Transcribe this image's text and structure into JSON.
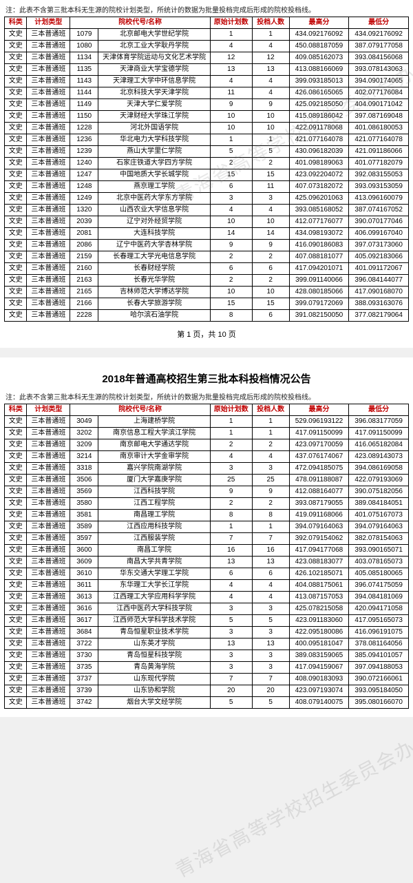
{
  "note": "注：此表不含第三批本科无生源的院校计划类型，所统计的数据为批量投档完成后形成的院校投档线。",
  "title2": "2018年普通高校招生第三批本科投档情况公告",
  "pager": "第 1 页，共 10 页",
  "watermark": "青海省高等学校招生委员会办公室",
  "headers": [
    "科类",
    "计划类型",
    "",
    "院校代号/名称",
    "原始计划数",
    "投档人数",
    "最高分",
    "最低分"
  ],
  "styles": {
    "header_color": "#c00000",
    "border_color": "#000000",
    "bg_color": "#ffffff",
    "font_size_cell": 10,
    "font_size_header": 10
  },
  "page1_rows": [
    [
      "文史",
      "三本普通班",
      "1079",
      "北京邮电大学世纪学院",
      "1",
      "1",
      "434.092176092",
      "434.092176092"
    ],
    [
      "文史",
      "三本普通班",
      "1080",
      "北京工业大学耿丹学院",
      "4",
      "4",
      "450.088187059",
      "387.079177058"
    ],
    [
      "文史",
      "三本普通班",
      "1134",
      "天津体育学院运动与文化艺术学院",
      "12",
      "12",
      "409.085162073",
      "393.084156068"
    ],
    [
      "文史",
      "三本普通班",
      "1135",
      "天津商业大学宝德学院",
      "13",
      "13",
      "413.088166069",
      "393.078143063"
    ],
    [
      "文史",
      "三本普通班",
      "1143",
      "天津理工大学中环信息学院",
      "4",
      "4",
      "399.093185013",
      "394.090174065"
    ],
    [
      "文史",
      "三本普通班",
      "1144",
      "北京科技大学天津学院",
      "11",
      "4",
      "426.086165065",
      "402.077176084"
    ],
    [
      "文史",
      "三本普通班",
      "1149",
      "天津大学仁爱学院",
      "9",
      "9",
      "425.092185050",
      "404.090171042"
    ],
    [
      "文史",
      "三本普通班",
      "1150",
      "天津财经大学珠江学院",
      "10",
      "10",
      "415.089186042",
      "397.087169048"
    ],
    [
      "文史",
      "三本普通班",
      "1228",
      "河北外国语学院",
      "10",
      "10",
      "422.091178068",
      "401.086180053"
    ],
    [
      "文史",
      "三本普通班",
      "1236",
      "华北电力大学科技学院",
      "1",
      "1",
      "421.077164078",
      "421.077164078"
    ],
    [
      "文史",
      "三本普通班",
      "1239",
      "燕山大学里仁学院",
      "5",
      "5",
      "430.096182039",
      "421.091186066"
    ],
    [
      "文史",
      "三本普通班",
      "1240",
      "石家庄铁道大学四方学院",
      "2",
      "2",
      "401.098189063",
      "401.077182079"
    ],
    [
      "文史",
      "三本普通班",
      "1247",
      "中国地质大学长城学院",
      "15",
      "15",
      "423.092204072",
      "392.083155053"
    ],
    [
      "文史",
      "三本普通班",
      "1248",
      "燕京理工学院",
      "6",
      "11",
      "407.073182072",
      "393.093153059"
    ],
    [
      "文史",
      "三本普通班",
      "1249",
      "北京中医药大学东方学院",
      "3",
      "3",
      "425.096201063",
      "413.096160079"
    ],
    [
      "文史",
      "三本普通班",
      "1320",
      "山西农业大学信息学院",
      "4",
      "4",
      "393.085168052",
      "387.074167052"
    ],
    [
      "文史",
      "三本普通班",
      "2039",
      "辽宁对外经贸学院",
      "10",
      "10",
      "412.077176077",
      "390.070177046"
    ],
    [
      "文史",
      "三本普通班",
      "2081",
      "大连科技学院",
      "14",
      "14",
      "434.098193072",
      "406.099167040"
    ],
    [
      "文史",
      "三本普通班",
      "2086",
      "辽宁中医药大学杏林学院",
      "9",
      "9",
      "416.090186083",
      "397.073173060"
    ],
    [
      "文史",
      "三本普通班",
      "2159",
      "长春理工大学光电信息学院",
      "2",
      "2",
      "407.088181077",
      "405.092183066"
    ],
    [
      "文史",
      "三本普通班",
      "2160",
      "长春财经学院",
      "6",
      "6",
      "417.094201071",
      "401.091172067"
    ],
    [
      "文史",
      "三本普通班",
      "2163",
      "长春光华学院",
      "2",
      "2",
      "399.091140066",
      "396.084144077"
    ],
    [
      "文史",
      "三本普通班",
      "2165",
      "吉林师范大学博达学院",
      "10",
      "10",
      "428.080185066",
      "417.090168070"
    ],
    [
      "文史",
      "三本普通班",
      "2166",
      "长春大学旅游学院",
      "15",
      "15",
      "399.079172069",
      "388.093163076"
    ],
    [
      "文史",
      "三本普通班",
      "2228",
      "哈尔滨石油学院",
      "8",
      "6",
      "391.082150050",
      "377.082179064"
    ]
  ],
  "page2_rows": [
    [
      "文史",
      "三本普通班",
      "3049",
      "上海建桥学院",
      "1",
      "1",
      "529.096193122",
      "396.083177059"
    ],
    [
      "文史",
      "三本普通班",
      "3202",
      "南京信息工程大学滨江学院",
      "1",
      "1",
      "417.091150099",
      "417.091150099"
    ],
    [
      "文史",
      "三本普通班",
      "3209",
      "南京邮电大学通达学院",
      "2",
      "2",
      "423.097170059",
      "416.065182084"
    ],
    [
      "文史",
      "三本普通班",
      "3214",
      "南京审计大学金审学院",
      "4",
      "4",
      "437.076174067",
      "423.089143073"
    ],
    [
      "文史",
      "三本普通班",
      "3318",
      "嘉兴学院南湖学院",
      "3",
      "3",
      "472.094185075",
      "394.086169058"
    ],
    [
      "文史",
      "三本普通班",
      "3506",
      "厦门大学嘉庚学院",
      "25",
      "25",
      "478.091188087",
      "422.079193069"
    ],
    [
      "文史",
      "三本普通班",
      "3569",
      "江西科技学院",
      "9",
      "9",
      "412.088164077",
      "390.075182056"
    ],
    [
      "文史",
      "三本普通班",
      "3580",
      "江西工程学院",
      "2",
      "2",
      "393.087179055",
      "389.084184051"
    ],
    [
      "文史",
      "三本普通班",
      "3581",
      "南昌理工学院",
      "8",
      "8",
      "419.091168066",
      "401.075167073"
    ],
    [
      "文史",
      "三本普通班",
      "3589",
      "江西应用科技学院",
      "1",
      "1",
      "394.079164063",
      "394.079164063"
    ],
    [
      "文史",
      "三本普通班",
      "3597",
      "江西服装学院",
      "7",
      "7",
      "392.079154062",
      "382.078154063"
    ],
    [
      "文史",
      "三本普通班",
      "3600",
      "南昌工学院",
      "16",
      "16",
      "417.094177068",
      "393.090165071"
    ],
    [
      "文史",
      "三本普通班",
      "3609",
      "南昌大学共青学院",
      "13",
      "13",
      "423.088183077",
      "403.078165073"
    ],
    [
      "文史",
      "三本普通班",
      "3610",
      "华东交通大学理工学院",
      "6",
      "6",
      "426.102185071",
      "405.085180065"
    ],
    [
      "文史",
      "三本普通班",
      "3611",
      "东华理工大学长江学院",
      "4",
      "4",
      "404.088175061",
      "396.074175059"
    ],
    [
      "文史",
      "三本普通班",
      "3613",
      "江西理工大学应用科学学院",
      "4",
      "4",
      "413.087157053",
      "394.084181069"
    ],
    [
      "文史",
      "三本普通班",
      "3616",
      "江西中医药大学科技学院",
      "3",
      "3",
      "425.078215058",
      "420.094171058"
    ],
    [
      "文史",
      "三本普通班",
      "3617",
      "江西师范大学科学技术学院",
      "5",
      "5",
      "423.091183060",
      "417.095165073"
    ],
    [
      "文史",
      "三本普通班",
      "3684",
      "青岛恒星职业技术学院",
      "3",
      "3",
      "422.095180086",
      "416.096191075"
    ],
    [
      "文史",
      "三本普通班",
      "3722",
      "山东英才学院",
      "13",
      "13",
      "400.095181047",
      "378.081164056"
    ],
    [
      "文史",
      "三本普通班",
      "3730",
      "青岛恒星科技学院",
      "3",
      "3",
      "389.083159065",
      "385.094101057"
    ],
    [
      "文史",
      "三本普通班",
      "3735",
      "青岛黄海学院",
      "3",
      "3",
      "417.094159067",
      "397.094188053"
    ],
    [
      "文史",
      "三本普通班",
      "3737",
      "山东现代学院",
      "7",
      "7",
      "408.090183093",
      "390.072166061"
    ],
    [
      "文史",
      "三本普通班",
      "3739",
      "山东协和学院",
      "20",
      "20",
      "423.097193074",
      "393.095184050"
    ],
    [
      "文史",
      "三本普通班",
      "3742",
      "烟台大学文经学院",
      "5",
      "5",
      "408.079140075",
      "395.080166070"
    ]
  ]
}
